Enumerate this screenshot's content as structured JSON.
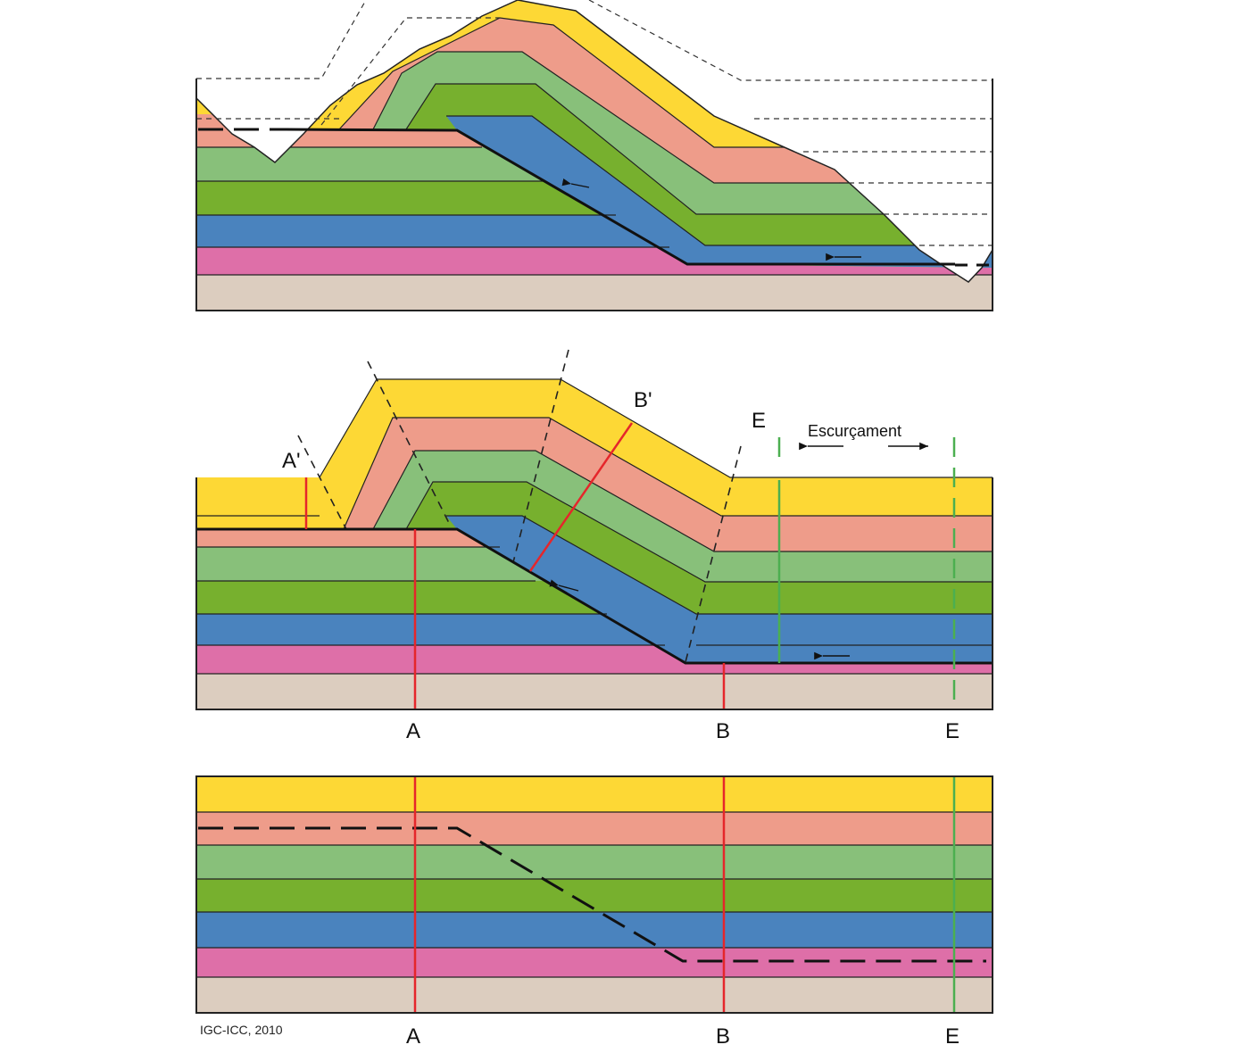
{
  "colors": {
    "yellow": "#FDD835",
    "salmon": "#EE9C8A",
    "light_green": "#88C07A",
    "green": "#77B02E",
    "blue": "#4A83BE",
    "pink": "#DE6FA8",
    "basement": "#DCCDBF",
    "marker_red": "#E5262B",
    "marker_green": "#4CAF50",
    "ground": "#ffffff"
  },
  "panel2": {
    "label_a_prime": "A'",
    "label_b_prime": "B'",
    "label_e_top": "E",
    "shortening": "Escurçament",
    "label_a": "A",
    "label_b": "B",
    "label_e": "E"
  },
  "panel3": {
    "label_a": "A",
    "label_b": "B",
    "label_e": "E"
  },
  "credit": "IGC-ICC, 2010"
}
